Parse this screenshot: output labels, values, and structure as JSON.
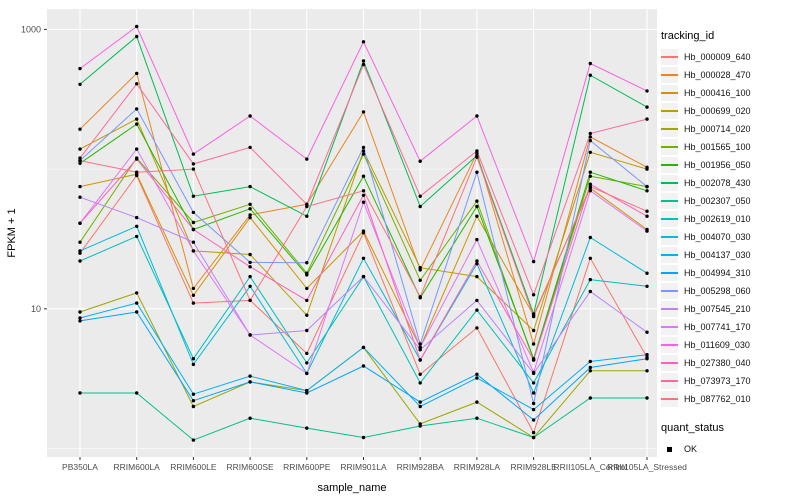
{
  "figure": {
    "background": "#FFFFFF",
    "panel_background": "#EBEBEB",
    "grid_color": "#FFFFFF",
    "axis_text_color": "#4D4D4D",
    "title_text_color": "#000000",
    "point_color": "#000000"
  },
  "chart_data": {
    "type": "line",
    "title": "",
    "xlabel": "sample_name",
    "ylabel": "FPKM + 1",
    "y_scale": "log10",
    "ylim": [
      0.87,
      1400
    ],
    "y_tick_labels": [
      "10",
      "1000"
    ],
    "y_major_gridlines": [
      10,
      1000
    ],
    "y_minor_gridlines": [
      1,
      100
    ],
    "grid": "on",
    "legend_position": "right",
    "categories": [
      "PB350LA",
      "RRIM600LA",
      "RRIM600LE",
      "RRIM600SE",
      "RRIM600PE",
      "RRIM901LA",
      "RRIM928BA",
      "RRIM928LA",
      "RRIM928LE",
      "RRII105LA_Control",
      "RRII105LA_Stressed"
    ],
    "series": [
      {
        "name": "Hb_000009_640",
        "color": "#F8766D",
        "values": [
          25,
          90,
          11,
          11.5,
          4.8,
          35,
          3.4,
          7.3,
          1.3,
          23,
          4.5
        ]
      },
      {
        "name": "Hb_000028_470",
        "color": "#E88526",
        "values": [
          193,
          484,
          14,
          47,
          56,
          257,
          19,
          130,
          5.6,
          170,
          103
        ]
      },
      {
        "name": "Hb_000416_100",
        "color": "#D39200",
        "values": [
          75,
          92,
          12.5,
          45,
          14,
          36,
          5.3,
          46,
          9,
          73,
          37
        ]
      },
      {
        "name": "Hb_000699_020",
        "color": "#BB9D00",
        "values": [
          139,
          228,
          26,
          24.5,
          9,
          135,
          19.7,
          17,
          7,
          132,
          100
        ]
      },
      {
        "name": "Hb_000714_020",
        "color": "#9DA700",
        "values": [
          9.5,
          13,
          2.0,
          3.0,
          2.6,
          5.3,
          1.5,
          2.15,
          1.2,
          3.6,
          3.6
        ]
      },
      {
        "name": "Hb_001565_100",
        "color": "#72B000",
        "values": [
          30,
          120,
          41.5,
          56,
          18,
          128,
          16,
          59,
          4.3,
          89,
          75
        ]
      },
      {
        "name": "Hb_001956_050",
        "color": "#24B700",
        "values": [
          110,
          210,
          37,
          52,
          17.5,
          89,
          12,
          54,
          4.4,
          95,
          70
        ]
      },
      {
        "name": "Hb_002078_430",
        "color": "#00BC51",
        "values": [
          405,
          890,
          64,
          75,
          46,
          595,
          54,
          125,
          9.2,
          470,
          278
        ]
      },
      {
        "name": "Hb_002307_050",
        "color": "#00C08B",
        "values": [
          2.5,
          2.5,
          1.15,
          1.65,
          1.4,
          1.2,
          1.45,
          1.65,
          1.2,
          2.3,
          2.3
        ]
      },
      {
        "name": "Hb_002619_010",
        "color": "#00C0B8",
        "values": [
          22,
          33,
          4.4,
          17,
          4.1,
          17,
          2.95,
          9.8,
          2.95,
          16.2,
          14.5
        ]
      },
      {
        "name": "Hb_004070_030",
        "color": "#00BBDA",
        "values": [
          26,
          39,
          4.0,
          14.5,
          3.45,
          23,
          4.3,
          21,
          2.5,
          32.4,
          18
        ]
      },
      {
        "name": "Hb_004137_030",
        "color": "#00B2F3",
        "values": [
          8.6,
          11,
          2.45,
          3.3,
          2.6,
          5.3,
          2.0,
          3.2,
          1.9,
          4.2,
          4.7
        ]
      },
      {
        "name": "Hb_004994_310",
        "color": "#00A5FF",
        "values": [
          8.2,
          9.5,
          2.2,
          3.0,
          2.5,
          3.9,
          2.15,
          3.4,
          1.6,
          3.8,
          4.4
        ]
      },
      {
        "name": "Hb_005298_060",
        "color": "#7997FF",
        "values": [
          115,
          270,
          49,
          21.5,
          21.4,
          143,
          5.6,
          95,
          2.1,
          160,
          75
        ]
      },
      {
        "name": "Hb_007545_210",
        "color": "#B983FF",
        "values": [
          63,
          45,
          30,
          6.5,
          7,
          17,
          5.1,
          11.5,
          3.45,
          13.3,
          6.8
        ]
      },
      {
        "name": "Hb_007741_170",
        "color": "#E076F9",
        "values": [
          41,
          139,
          26,
          6.5,
          3.45,
          58,
          5.3,
          31.3,
          3.5,
          70,
          36
        ]
      },
      {
        "name": "Hb_011609_030",
        "color": "#F763E0",
        "values": [
          524,
          1050,
          128,
          240,
          118,
          815,
          114,
          240,
          21.8,
          570,
          363
        ]
      },
      {
        "name": "Hb_027380_040",
        "color": "#FF62BE",
        "values": [
          41,
          118,
          37,
          20,
          11.5,
          65,
          4.3,
          22,
          4.3,
          78,
          46
        ]
      },
      {
        "name": "Hb_073973_170",
        "color": "#FF6A9A",
        "values": [
          120,
          408,
          109,
          143,
          56,
          560,
          64,
          135,
          12.6,
          180,
          228
        ]
      },
      {
        "name": "Hb_087762_010",
        "color": "#FC717F",
        "values": [
          115,
          95,
          100,
          11.5,
          54,
          70,
          12.2,
          122,
          8.8,
          75,
          50
        ]
      }
    ],
    "legend": {
      "series_title": "tracking_id",
      "status_title": "quant_status",
      "status_items": [
        {
          "label": "OK",
          "marker": "black-square"
        }
      ]
    }
  }
}
